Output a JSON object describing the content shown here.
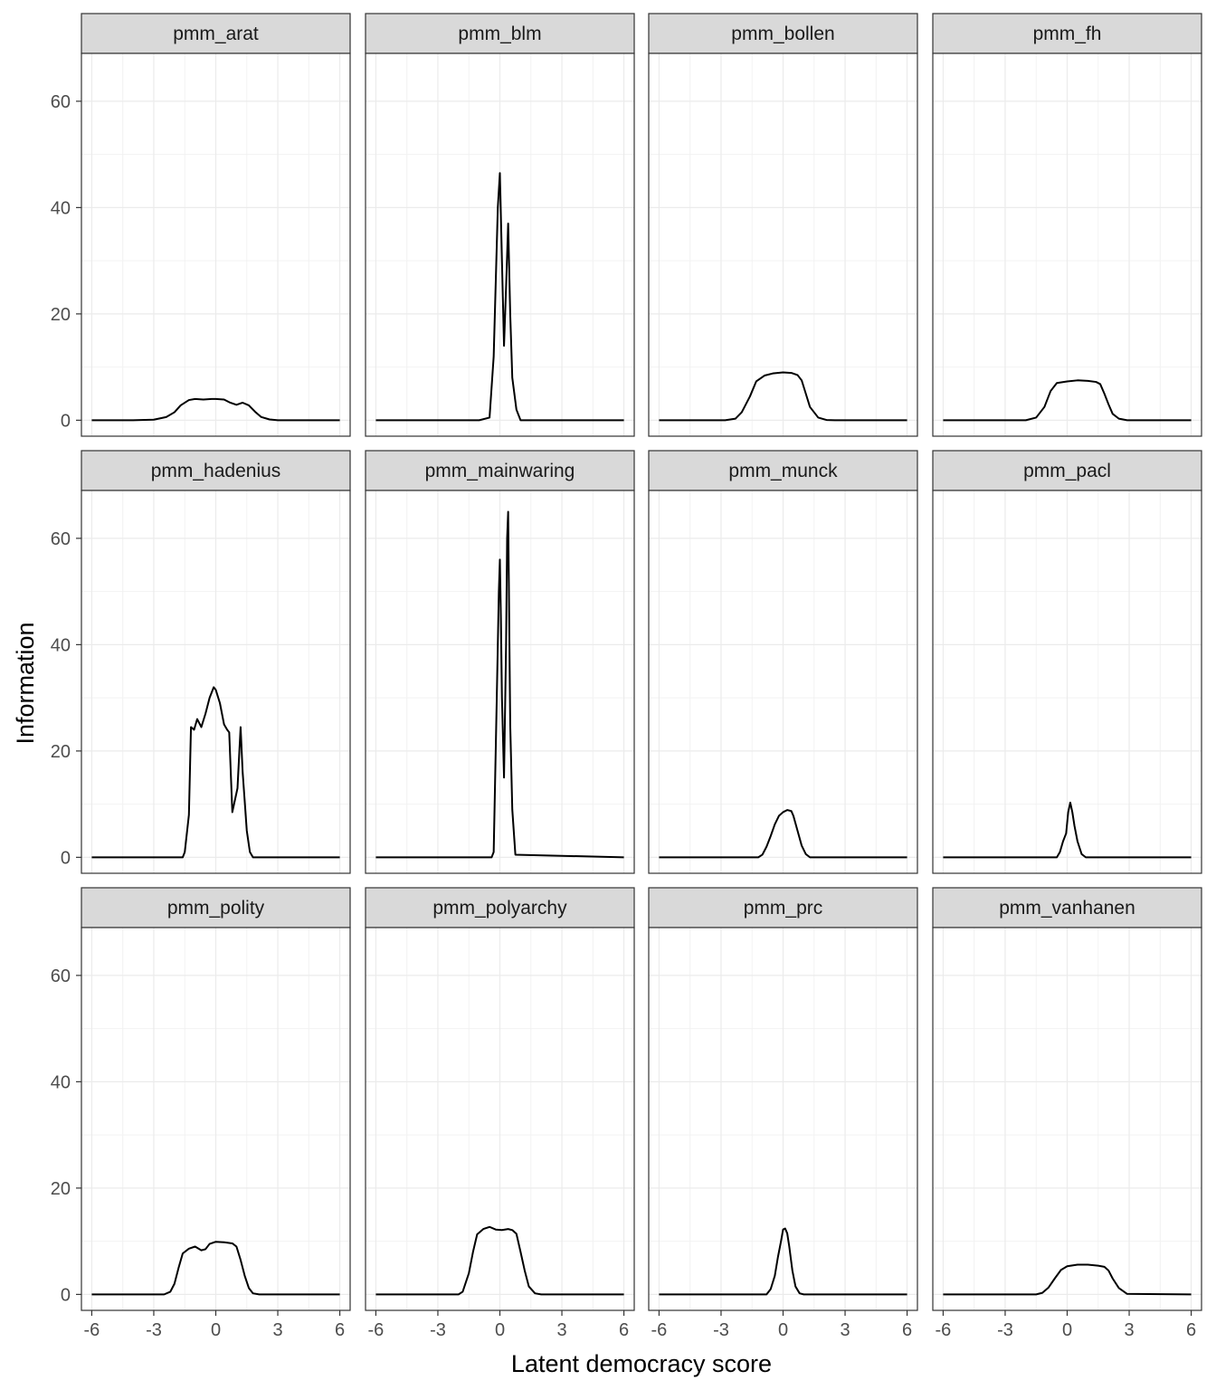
{
  "chart_data": {
    "type": "line",
    "facet_layout": "3 rows x 4 columns, shared axes",
    "xlabel": "Latent democracy score",
    "ylabel": "Information",
    "xlim": [
      -6.5,
      6.5
    ],
    "ylim": [
      -3,
      69
    ],
    "x_ticks": [
      -6,
      -3,
      0,
      3,
      6
    ],
    "x_tick_labels": [
      "-6",
      "-3",
      "0",
      "3",
      "6"
    ],
    "y_ticks": [
      0,
      20,
      40,
      60
    ],
    "y_tick_labels": [
      "0",
      "20",
      "40",
      "60"
    ],
    "grid": true,
    "line_color": "#000000",
    "strip_fill": "#d9d9d9",
    "panels": [
      {
        "title": "pmm_arat",
        "x": [
          -6,
          -4,
          -3,
          -2.4,
          -2,
          -1.7,
          -1.3,
          -1,
          -0.6,
          -0.2,
          0,
          0.4,
          0.7,
          1,
          1.3,
          1.6,
          1.9,
          2.2,
          2.6,
          3,
          4,
          6
        ],
        "y": [
          0,
          0,
          0.1,
          0.6,
          1.5,
          2.8,
          3.8,
          4.0,
          3.9,
          4.0,
          4.0,
          3.9,
          3.3,
          2.9,
          3.3,
          2.8,
          1.6,
          0.6,
          0.15,
          0,
          0,
          0
        ]
      },
      {
        "title": "pmm_blm",
        "x": [
          -6,
          -1,
          -0.5,
          -0.3,
          -0.1,
          0,
          0.1,
          0.2,
          0.3,
          0.4,
          0.5,
          0.6,
          0.8,
          1,
          6
        ],
        "y": [
          0,
          0,
          0.5,
          12,
          40,
          46.5,
          30,
          14,
          25,
          37,
          20,
          8,
          2,
          0,
          0
        ]
      },
      {
        "title": "pmm_bollen",
        "x": [
          -6,
          -2.8,
          -2.3,
          -2,
          -1.6,
          -1.3,
          -0.9,
          -0.5,
          0,
          0.4,
          0.7,
          0.9,
          1.1,
          1.3,
          1.7,
          2.1,
          2.5,
          6
        ],
        "y": [
          0,
          0,
          0.3,
          1.5,
          4.5,
          7.3,
          8.4,
          8.8,
          9.0,
          8.9,
          8.5,
          7.5,
          5,
          2.5,
          0.5,
          0.05,
          0,
          0
        ]
      },
      {
        "title": "pmm_fh",
        "x": [
          -6,
          -2,
          -1.5,
          -1.1,
          -0.8,
          -0.5,
          0,
          0.5,
          1,
          1.4,
          1.6,
          1.8,
          2,
          2.2,
          2.5,
          2.9,
          6
        ],
        "y": [
          0,
          0,
          0.5,
          2.5,
          5.5,
          7.0,
          7.3,
          7.5,
          7.4,
          7.2,
          6.8,
          5,
          3,
          1.2,
          0.3,
          0,
          0
        ]
      },
      {
        "title": "pmm_hadenius",
        "x": [
          -6,
          -1.6,
          -1.5,
          -1.3,
          -1.2,
          -1.05,
          -0.9,
          -0.7,
          -0.5,
          -0.3,
          -0.1,
          0,
          0.2,
          0.4,
          0.55,
          0.65,
          0.8,
          1.05,
          1.2,
          1.3,
          1.5,
          1.65,
          1.8,
          6
        ],
        "y": [
          0,
          0,
          1,
          8,
          24.5,
          24,
          26,
          24.5,
          27,
          30,
          32,
          31.5,
          29,
          25,
          24,
          23.5,
          8.5,
          13,
          24.5,
          16,
          5,
          1,
          0,
          0
        ]
      },
      {
        "title": "pmm_mainwaring",
        "x": [
          -6,
          -0.4,
          -0.3,
          -0.15,
          -0.05,
          0,
          0.05,
          0.1,
          0.2,
          0.3,
          0.35,
          0.4,
          0.45,
          0.5,
          0.6,
          0.75,
          6
        ],
        "y": [
          0,
          0,
          1,
          30,
          50,
          56,
          45,
          30,
          15,
          40,
          60,
          65,
          45,
          25,
          9,
          0.5,
          0
        ]
      },
      {
        "title": "pmm_munck",
        "x": [
          -6,
          -1.2,
          -1,
          -0.8,
          -0.6,
          -0.4,
          -0.2,
          0,
          0.2,
          0.4,
          0.5,
          0.7,
          0.9,
          1.1,
          1.3,
          6
        ],
        "y": [
          0,
          0,
          0.5,
          2,
          4,
          6.2,
          7.8,
          8.5,
          8.9,
          8.7,
          7.8,
          5,
          2.2,
          0.6,
          0,
          0
        ]
      },
      {
        "title": "pmm_pacl",
        "x": [
          -6,
          -0.5,
          -0.35,
          -0.2,
          -0.05,
          0.05,
          0.15,
          0.25,
          0.35,
          0.5,
          0.7,
          0.9,
          6
        ],
        "y": [
          0,
          0,
          1,
          3,
          4.5,
          8.5,
          10.3,
          8.5,
          6,
          3,
          0.6,
          0,
          0
        ]
      },
      {
        "title": "pmm_polity",
        "x": [
          -6,
          -2.5,
          -2.2,
          -2,
          -1.8,
          -1.6,
          -1.3,
          -1,
          -0.7,
          -0.5,
          -0.3,
          0,
          0.4,
          0.8,
          1,
          1.2,
          1.4,
          1.6,
          1.8,
          2.1,
          6
        ],
        "y": [
          0,
          0,
          0.5,
          2,
          5,
          7.7,
          8.6,
          9.0,
          8.3,
          8.5,
          9.5,
          9.9,
          9.8,
          9.6,
          9,
          6.5,
          3.5,
          1.2,
          0.2,
          0,
          0
        ]
      },
      {
        "title": "pmm_polyarchy",
        "x": [
          -6,
          -2,
          -1.8,
          -1.5,
          -1.3,
          -1.1,
          -0.8,
          -0.5,
          -0.2,
          0.1,
          0.4,
          0.6,
          0.8,
          1,
          1.2,
          1.4,
          1.7,
          2,
          6
        ],
        "y": [
          0,
          0,
          0.5,
          4,
          8,
          11.3,
          12.3,
          12.7,
          12.2,
          12.1,
          12.3,
          12.1,
          11.4,
          8,
          4.5,
          1.5,
          0.2,
          0,
          0
        ]
      },
      {
        "title": "pmm_prc",
        "x": [
          -6,
          -0.8,
          -0.6,
          -0.4,
          -0.25,
          -0.1,
          0,
          0.1,
          0.2,
          0.3,
          0.45,
          0.6,
          0.8,
          1,
          6
        ],
        "y": [
          0,
          0,
          1,
          3.5,
          7,
          10,
          12.2,
          12.4,
          11.5,
          9,
          4.5,
          1.5,
          0.2,
          0,
          0
        ]
      },
      {
        "title": "pmm_vanhanen",
        "x": [
          -6,
          -1.5,
          -1.2,
          -0.9,
          -0.6,
          -0.3,
          0,
          0.5,
          1,
          1.5,
          1.8,
          2,
          2.2,
          2.5,
          2.9,
          6
        ],
        "y": [
          0,
          0,
          0.3,
          1.3,
          3,
          4.6,
          5.3,
          5.6,
          5.6,
          5.4,
          5.2,
          4.5,
          3,
          1.2,
          0.1,
          0
        ]
      }
    ]
  }
}
